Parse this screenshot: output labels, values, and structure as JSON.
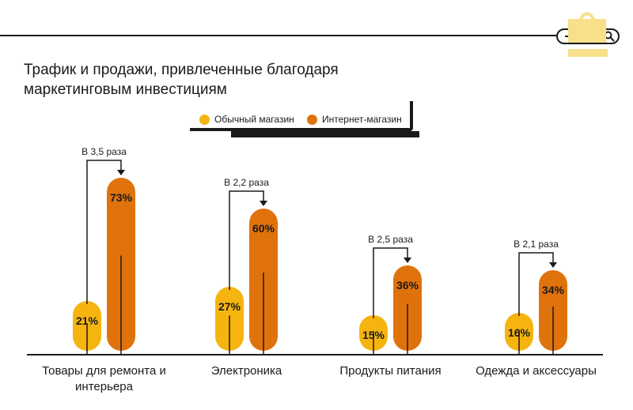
{
  "chart_data": {
    "type": "bar",
    "title": "Трафик и продажи, привлеченные благодаря маркетинговым инвестициям",
    "unit": "%",
    "categories": [
      [
        "Товары для ремонта и",
        "интерьера"
      ],
      [
        "Электроника"
      ],
      [
        "Продукты питания"
      ],
      [
        "Одежда и аксессуары"
      ]
    ],
    "series": [
      {
        "name": "Обычный магазин",
        "values": [
          21,
          27,
          15,
          16
        ],
        "color": "#F5B40F"
      },
      {
        "name": "Интернет-магазин",
        "values": [
          73,
          60,
          36,
          34
        ],
        "color": "#E0720C"
      }
    ],
    "ratios": [
      "В 3,5 раза",
      "В 2,2 раза",
      "В 2,5 раза",
      "В 2,1 раза"
    ],
    "legend_position": "top-center",
    "grid": false
  },
  "icons": {
    "search": "search-icon",
    "bag": "shopping-bag-icon"
  },
  "colors": {
    "ink": "#1a1a1a",
    "bag": "#F8E08A"
  }
}
